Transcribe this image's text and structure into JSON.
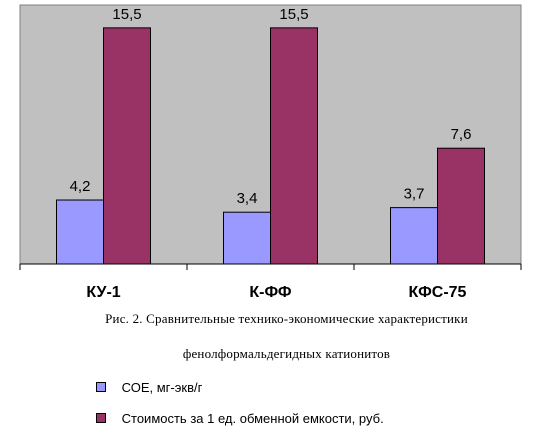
{
  "chart_data": {
    "type": "bar",
    "categories": [
      "КУ-1",
      "К-ФФ",
      "КФС-75"
    ],
    "series": [
      {
        "name": "СОЕ, мг-экв/г",
        "values": [
          4.2,
          3.4,
          3.7
        ],
        "labels": [
          "4,2",
          "3,4",
          "3,7"
        ],
        "color": "#9999ff"
      },
      {
        "name": "Стоимость за 1 ед. обменной емкости, руб.",
        "values": [
          15.5,
          15.5,
          7.6
        ],
        "labels": [
          "15,5",
          "15,5",
          "7,6"
        ],
        "color": "#993366"
      }
    ],
    "title": "",
    "xlabel": "",
    "ylabel": "",
    "ylim": [
      0,
      17
    ],
    "grid": false,
    "plot_background": "#c0c0c0",
    "legend_placement": "bottom-left"
  },
  "caption": {
    "line1": "Рис. 2. Сравнительные технико-экономические характеристики",
    "line2": "фенолформальдегидных катионитов"
  }
}
